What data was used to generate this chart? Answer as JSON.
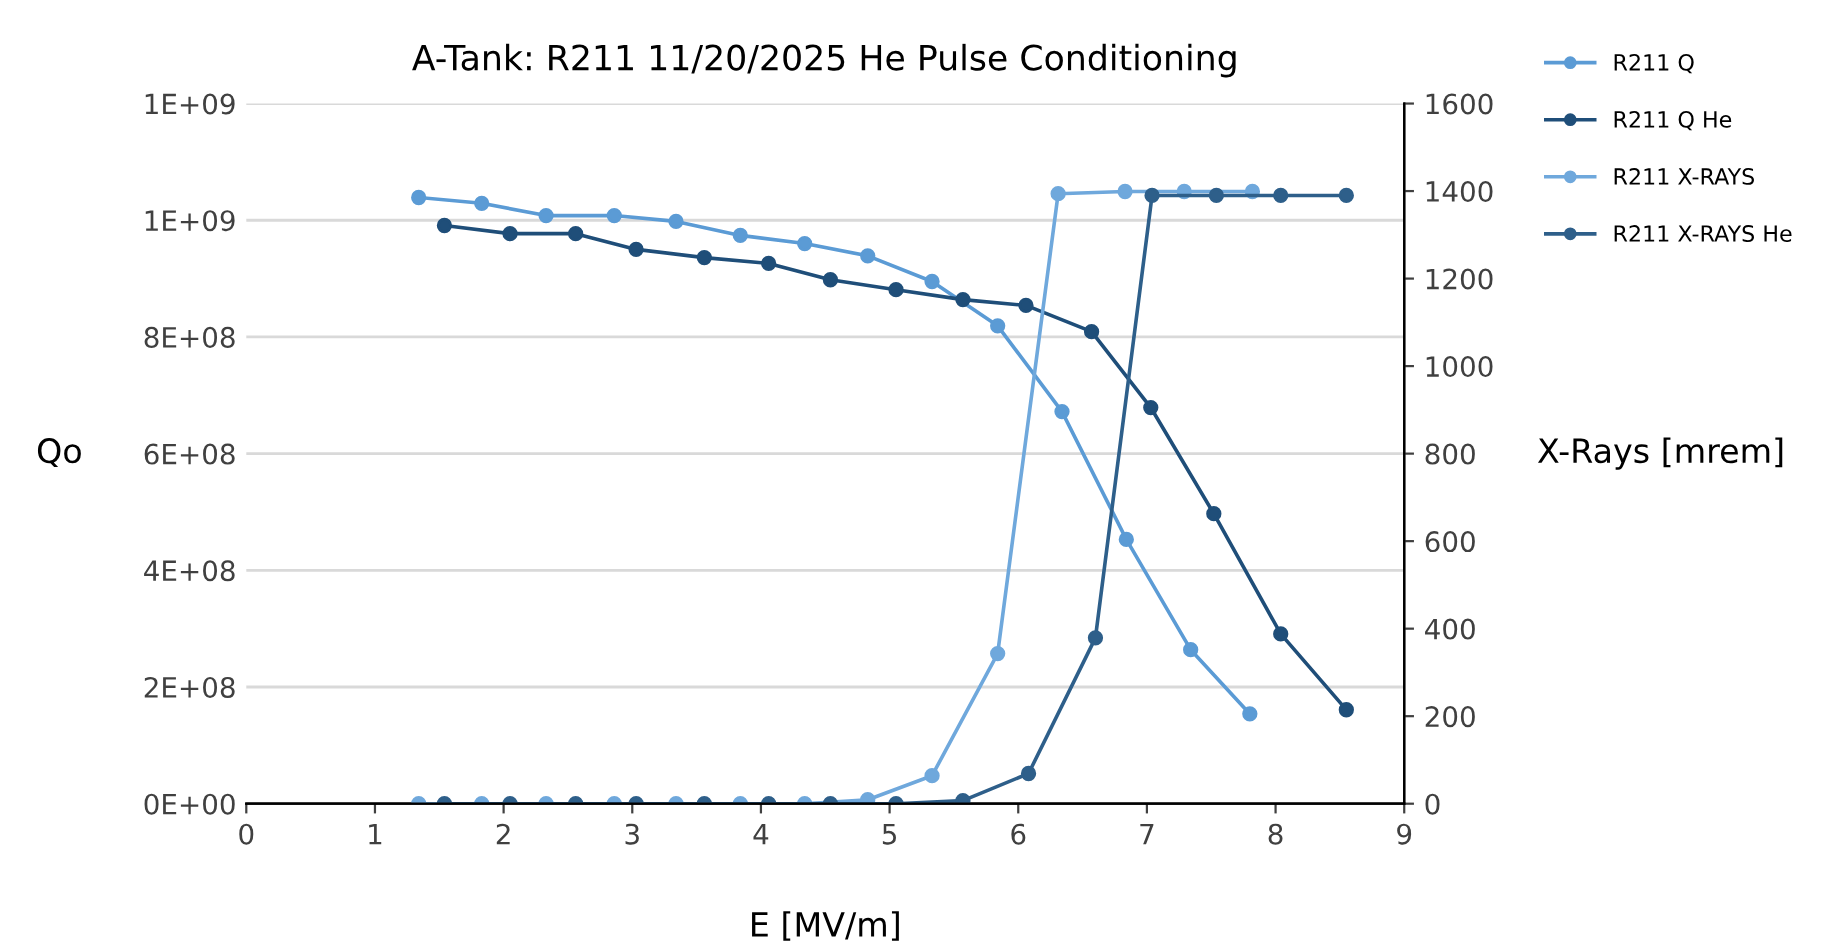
{
  "chart_data": {
    "type": "line",
    "title": "A-Tank: R211 11/20/2025 He Pulse Conditioning",
    "xlabel": "E [MV/m]",
    "ylabel": "Qo",
    "y2label": "X-Rays [mrem]",
    "series": [
      {
        "name": "R211 Q",
        "color": "#5b9bd5",
        "x": [
          1.34,
          1.83,
          2.33,
          2.86,
          3.34,
          3.84,
          4.34,
          4.83,
          5.33,
          5.84,
          6.34,
          6.84,
          7.34,
          7.8
        ],
        "values": [
          1039000000.0,
          1029000000.0,
          1008000000.0,
          1008000000.0,
          998000000.0,
          974000000.0,
          960000000.0,
          939000000.0,
          895000000.0,
          819000000.0,
          672000000.0,
          453000000.0,
          264000000.0,
          154000000.0
        ]
      },
      {
        "name": "R211 Q He",
        "color": "#1f4e79",
        "x": [
          1.54,
          2.05,
          2.56,
          3.03,
          3.56,
          4.06,
          4.54,
          5.05,
          5.57,
          6.06,
          6.57,
          7.03,
          7.52,
          8.04,
          8.55
        ],
        "values": [
          991000000.0,
          977000000.0,
          977000000.0,
          950000000.0,
          936000000.0,
          926000000.0,
          898000000.0,
          881000000.0,
          864000000.0,
          854000000.0,
          809000000.0,
          679000000.0,
          497000000.0,
          291000000.0,
          161000000.0
        ]
      },
      {
        "name": "R211 X-RAYS",
        "color": "#6fa8dc",
        "axis": "y2",
        "x": [
          1.34,
          1.83,
          2.33,
          2.86,
          3.34,
          3.84,
          4.34,
          4.83,
          5.33,
          5.84,
          6.31,
          6.83,
          7.29,
          7.82
        ],
        "values": [
          0,
          0,
          0,
          0,
          0,
          0,
          0,
          9,
          64,
          343,
          1394,
          1399,
          1399,
          1399
        ]
      },
      {
        "name": "R211 X-RAYS He",
        "color": "#2e5f8a",
        "axis": "y2",
        "x": [
          1.54,
          2.05,
          2.56,
          3.03,
          3.56,
          4.06,
          4.54,
          5.05,
          5.57,
          6.08,
          6.6,
          7.04,
          7.54,
          8.04,
          8.55
        ],
        "values": [
          0,
          0,
          0,
          0,
          0,
          0,
          0,
          0,
          7,
          69,
          379,
          1390,
          1390,
          1390,
          1390
        ]
      }
    ],
    "xlim": [
      0,
      9
    ],
    "xticks": [
      0,
      1,
      2,
      3,
      4,
      5,
      6,
      7,
      8,
      9
    ],
    "ylim": [
      0,
      1200000000.0
    ],
    "yticks": [
      {
        "value": 0,
        "label": "0E+00"
      },
      {
        "value": 200000000.0,
        "label": "2E+08"
      },
      {
        "value": 400000000.0,
        "label": "4E+08"
      },
      {
        "value": 600000000.0,
        "label": "6E+08"
      },
      {
        "value": 800000000.0,
        "label": "8E+08"
      },
      {
        "value": 1000000000.0,
        "label": "1E+09"
      },
      {
        "value": 1200000000.0,
        "label": "1E+09"
      }
    ],
    "y2lim": [
      0,
      1600
    ],
    "y2ticks": [
      0,
      200,
      400,
      600,
      800,
      1000,
      1200,
      1400,
      1600
    ],
    "grid": "y",
    "legend": "right",
    "marker": "circle",
    "line_style": "solid"
  }
}
